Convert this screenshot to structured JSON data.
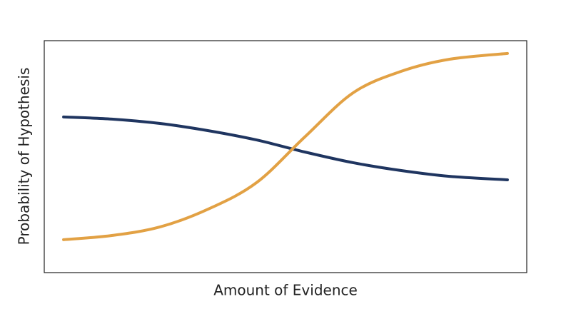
{
  "chart_data": {
    "type": "line",
    "x_label": "Amount of Evidence",
    "y_label": "Probability of Hypothesis",
    "x": [
      4,
      14,
      24,
      34,
      44,
      54,
      64,
      74,
      84,
      96
    ],
    "series": [
      {
        "color": "#1f3560",
        "values": [
          67.1,
          66.2,
          64.3,
          61.2,
          57.2,
          52.0,
          47.4,
          44.0,
          41.5,
          40.0
        ]
      },
      {
        "color": "#e2a144",
        "values": [
          14.2,
          16.0,
          19.7,
          27.4,
          38.8,
          58.5,
          77.5,
          86.8,
          92.0,
          94.5
        ]
      }
    ],
    "xlim": [
      0,
      100
    ],
    "ylim": [
      0,
      100
    ]
  }
}
